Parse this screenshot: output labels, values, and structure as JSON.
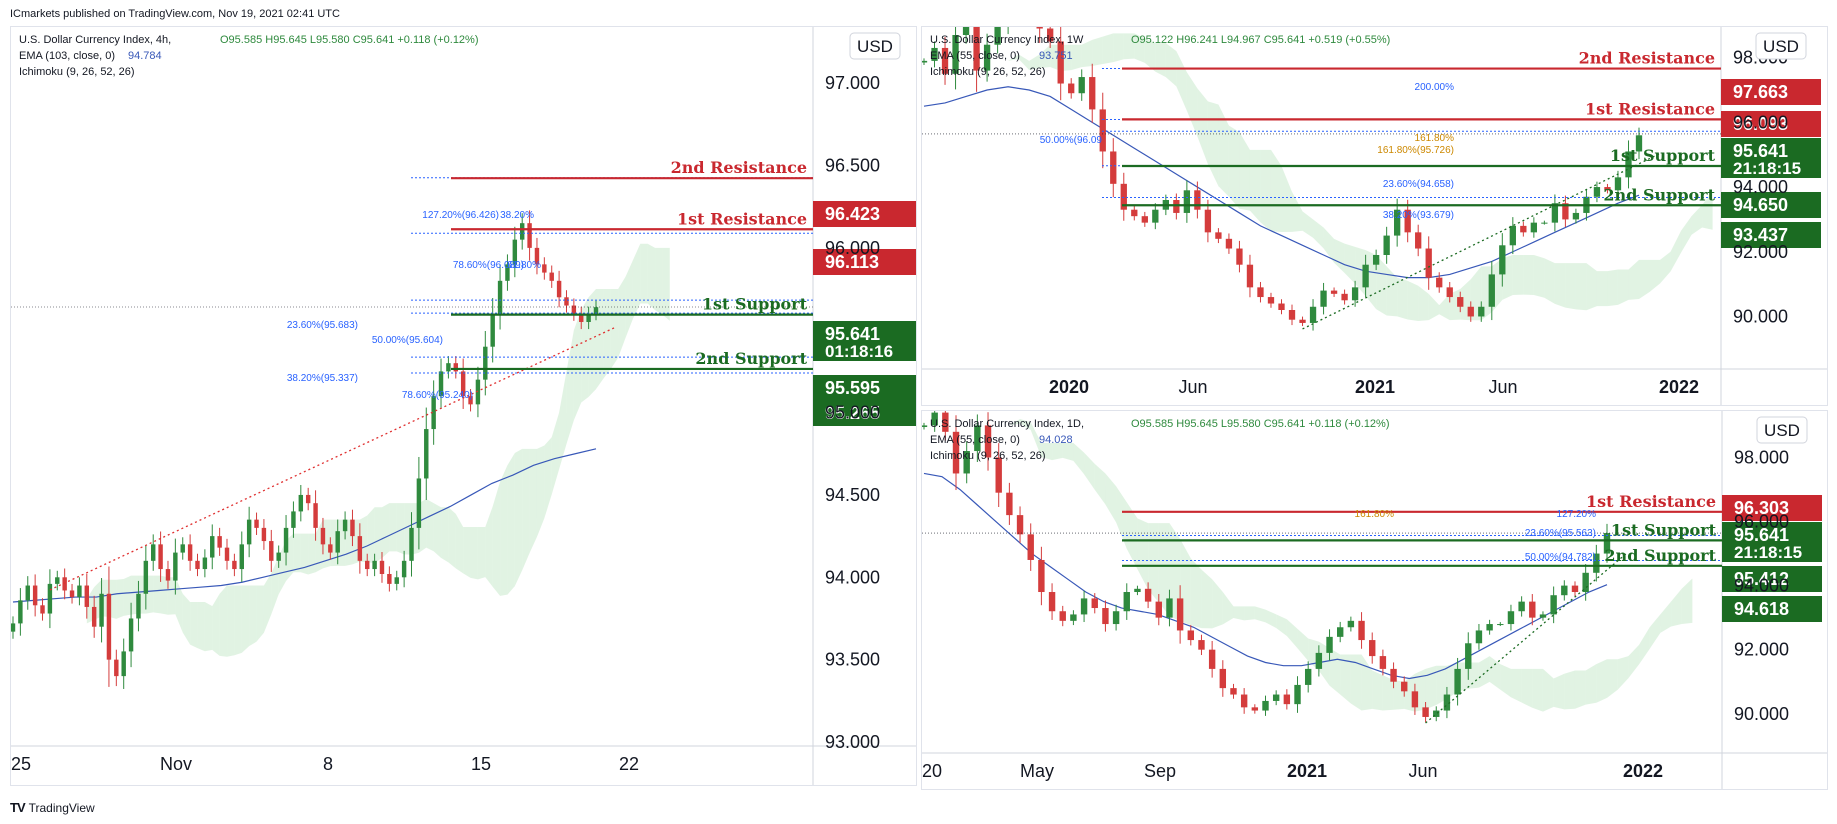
{
  "header": "ICmarkets published on TradingView.com, Nov 19, 2021 02:41 UTC",
  "footer": {
    "brand": "TradingView",
    "logo": "TV"
  },
  "colors": {
    "resistance": "#c9282f",
    "support": "#1b6b22",
    "fib_blue": "#2962ff",
    "fib_orange": "#cc8800",
    "ema": "#3858b8",
    "trend_red": "#e03030",
    "candle_up": "#2f8a3e",
    "candle_down": "#d43c3c",
    "cloud_green": "#a8dcb0",
    "cloud_red": "#f5a5a5"
  },
  "panels": [
    {
      "id": "h4",
      "title_line": "U.S. Dollar Currency Index, 4h,",
      "ohlc": "O95.585  H95.645  L95.580  C95.641  +0.118 (+0.12%)",
      "ema_label": "EMA (103, close, 0)",
      "ema_value": "94.784",
      "ichimoku_label": "Ichimoku (9, 26, 52, 26)",
      "currency": "USD",
      "x_ticks": [
        "25",
        "Nov",
        "8",
        "15",
        "22"
      ],
      "y_ticks": [
        "97.000",
        "96.500",
        "96.000",
        "95.000",
        "94.500",
        "94.000",
        "93.500",
        "93.000"
      ],
      "price_tags": [
        {
          "text": "96.423",
          "type": "resistance"
        },
        {
          "text": "96.113",
          "type": "resistance"
        },
        {
          "text": "95.641",
          "sub": "01:18:16",
          "type": "support"
        },
        {
          "text": "95.595",
          "type": "support"
        },
        {
          "text": "95.265",
          "type": "support"
        }
      ],
      "level_labels": [
        {
          "text": "2nd Resistance",
          "type": "resistance"
        },
        {
          "text": "1st Resistance",
          "type": "resistance"
        },
        {
          "text": "1st Support",
          "type": "support"
        },
        {
          "text": "2nd Support",
          "type": "support"
        }
      ],
      "fib_labels": [
        {
          "text": "127.20%(96.426)",
          "color": "blue"
        },
        {
          "text": "38.20%",
          "color": "blue"
        },
        {
          "text": "78.60%(96.089)",
          "color": "blue"
        },
        {
          "text": "61.80%",
          "color": "blue"
        },
        {
          "text": "23.60%(95.683)",
          "color": "blue"
        },
        {
          "text": "50.00%(95.604)",
          "color": "blue"
        },
        {
          "text": "38.20%(95.337)",
          "color": "blue"
        },
        {
          "text": "78.60%(95.240)",
          "color": "blue"
        }
      ]
    },
    {
      "id": "w1",
      "title_line": "U.S. Dollar Currency Index, 1W",
      "ohlc": "O95.122  H96.241  L94.967  C95.641  +0.519 (+0.55%)",
      "ema_label": "EMA (55, close, 0)",
      "ema_value": "93.751",
      "ichimoku_label": "Ichimoku (9, 26, 52, 26)",
      "currency": "USD",
      "x_ticks": [
        "2020",
        "Jun",
        "2021",
        "Jun",
        "2022"
      ],
      "y_ticks": [
        "98.000",
        "96.000",
        "94.000",
        "92.000",
        "90.000"
      ],
      "price_tags": [
        {
          "text": "97.663",
          "type": "resistance"
        },
        {
          "text": "96.093",
          "type": "resistance"
        },
        {
          "text": "95.641",
          "sub": "21:18:15",
          "type": "support"
        },
        {
          "text": "94.650",
          "type": "support"
        },
        {
          "text": "93.437",
          "type": "support"
        }
      ],
      "level_labels": [
        {
          "text": "2nd Resistance",
          "type": "resistance"
        },
        {
          "text": "1st Resistance",
          "type": "resistance"
        },
        {
          "text": "1st Support",
          "type": "support"
        },
        {
          "text": "2nd Support",
          "type": "support"
        }
      ],
      "fib_labels": [
        {
          "text": "200.00%",
          "color": "blue"
        },
        {
          "text": "161.80%",
          "color": "orange"
        },
        {
          "text": "50.00%(96.09",
          "color": "blue"
        },
        {
          "text": "161.80%(95.726)",
          "color": "orange"
        },
        {
          "text": "23.60%(94.658)",
          "color": "blue"
        },
        {
          "text": "38.20%(93.679)",
          "color": "blue"
        }
      ]
    },
    {
      "id": "d1",
      "title_line": "U.S. Dollar Currency Index, 1D,",
      "ohlc": "O95.585  H95.645  L95.580  C95.641  +0.118 (+0.12%)",
      "ema_label": "EMA (55, close, 0)",
      "ema_value": "94.028",
      "ichimoku_label": "Ichimoku (9, 26, 52, 26)",
      "currency": "USD",
      "x_ticks": [
        "20",
        "May",
        "Sep",
        "2021",
        "Jun",
        "2022"
      ],
      "y_ticks": [
        "98.000",
        "96.000",
        "94.000",
        "92.000",
        "90.000"
      ],
      "price_tags": [
        {
          "text": "96.303",
          "type": "resistance"
        },
        {
          "text": "95.641",
          "sub": "21:18:15",
          "type": "support"
        },
        {
          "text": "95.412",
          "type": "support"
        },
        {
          "text": "94.618",
          "type": "support"
        }
      ],
      "level_labels": [
        {
          "text": "1st Resistance",
          "type": "resistance"
        },
        {
          "text": "1st Support",
          "type": "support"
        },
        {
          "text": "2nd Support",
          "type": "support"
        }
      ],
      "fib_labels": [
        {
          "text": "161.80%",
          "color": "orange"
        },
        {
          "text": "127.20%",
          "color": "blue"
        },
        {
          "text": "23.60%(95.563)",
          "color": "blue"
        },
        {
          "text": "50.00%(94.782)",
          "color": "blue"
        }
      ]
    }
  ],
  "chart_data": [
    {
      "type": "candlestick",
      "title": "U.S. Dollar Currency Index, 4h",
      "x_ticks": [
        "25",
        "Nov",
        "8",
        "15",
        "22"
      ],
      "ylim": [
        93.0,
        97.25
      ],
      "close": [
        93.72,
        93.86,
        93.95,
        93.83,
        93.78,
        93.96,
        94.0,
        93.92,
        93.88,
        93.95,
        93.82,
        93.7,
        93.9,
        93.5,
        93.4,
        93.55,
        93.75,
        93.9,
        94.1,
        94.2,
        94.05,
        93.98,
        94.15,
        94.2,
        94.1,
        94.05,
        94.12,
        94.25,
        94.18,
        94.1,
        94.05,
        94.2,
        94.35,
        94.3,
        94.22,
        94.1,
        94.15,
        94.3,
        94.4,
        94.5,
        94.45,
        94.3,
        94.2,
        94.15,
        94.28,
        94.35,
        94.25,
        94.1,
        94.05,
        94.1,
        94.02,
        93.96,
        94.0,
        94.1,
        94.3,
        94.6,
        94.9,
        95.1,
        95.25,
        95.3,
        95.25,
        95.1,
        95.05,
        95.2,
        95.4,
        95.6,
        95.8,
        95.9,
        96.05,
        96.15,
        96.0,
        95.9,
        95.85,
        95.8,
        95.7,
        95.65,
        95.6,
        95.55,
        95.6,
        95.64
      ],
      "ema": [
        93.85,
        93.86,
        93.87,
        93.88,
        93.88,
        93.9,
        93.91,
        93.92,
        93.93,
        93.94,
        93.95,
        93.97,
        94.0,
        94.03,
        94.06,
        94.1,
        94.14,
        94.19,
        94.25,
        94.31,
        94.37,
        94.43,
        94.5,
        94.57,
        94.62,
        94.68,
        94.72,
        94.75,
        94.78
      ],
      "levels": [
        {
          "name": "2nd Resistance",
          "value": 96.423
        },
        {
          "name": "1st Resistance",
          "value": 96.113
        },
        {
          "name": "1st Support",
          "value": 95.595
        },
        {
          "name": "2nd Support",
          "value": 95.265
        }
      ],
      "last_price": 95.641,
      "fib_levels": [
        {
          "label": "127.20%",
          "value": 96.426
        },
        {
          "label": "78.60%",
          "value": 96.089
        },
        {
          "label": "23.60%",
          "value": 95.683
        },
        {
          "label": "50.00%",
          "value": 95.604
        },
        {
          "label": "38.20%",
          "value": 95.337
        },
        {
          "label": "78.60%",
          "value": 95.24
        }
      ]
    },
    {
      "type": "candlestick",
      "title": "U.S. Dollar Currency Index, 1W",
      "x_ticks": [
        "2020",
        "Jun",
        "2021",
        "Jun",
        "2022"
      ],
      "ylim": [
        88.5,
        98.7
      ],
      "close": [
        97.9,
        98.3,
        97.5,
        98.7,
        99.3,
        97.6,
        98.4,
        99.0,
        99.6,
        99.8,
        100.0,
        98.9,
        98.5,
        97.2,
        96.9,
        97.4,
        96.4,
        95.1,
        94.1,
        93.3,
        93.1,
        92.9,
        93.3,
        93.6,
        93.2,
        93.9,
        93.3,
        92.6,
        92.4,
        92.1,
        91.6,
        90.9,
        90.6,
        90.4,
        90.2,
        89.9,
        89.8,
        90.3,
        90.8,
        90.7,
        90.5,
        90.9,
        91.6,
        91.9,
        92.5,
        93.3,
        92.6,
        92.1,
        91.2,
        90.9,
        90.6,
        90.3,
        90.0,
        90.3,
        91.3,
        92.2,
        92.8,
        92.6,
        92.9,
        92.9,
        93.5,
        93.0,
        93.2,
        93.7,
        94.0,
        93.9,
        94.3,
        95.1,
        95.6
      ],
      "ema": [
        96.5,
        96.6,
        96.8,
        97.0,
        97.1,
        97.0,
        96.8,
        96.4,
        96.0,
        95.6,
        95.2,
        94.8,
        94.4,
        94.0,
        93.6,
        93.2,
        92.8,
        92.5,
        92.2,
        91.9,
        91.6,
        91.4,
        91.3,
        91.2,
        91.2,
        91.3,
        91.5,
        91.7,
        92.0,
        92.3,
        92.6,
        92.9,
        93.2,
        93.5,
        93.75
      ],
      "levels": [
        {
          "name": "2nd Resistance",
          "value": 97.663
        },
        {
          "name": "1st Resistance",
          "value": 96.093
        },
        {
          "name": "1st Support",
          "value": 94.65
        },
        {
          "name": "2nd Support",
          "value": 93.437
        }
      ],
      "last_price": 95.641,
      "fib_levels": [
        {
          "label": "200.00%",
          "value": 97.663
        },
        {
          "label": "50.00%",
          "value": 96.09
        },
        {
          "label": "161.80%",
          "value": 95.726
        },
        {
          "label": "23.60%",
          "value": 94.658
        },
        {
          "label": "38.20%",
          "value": 93.679
        }
      ]
    },
    {
      "type": "candlestick",
      "title": "U.S. Dollar Currency Index, 1D",
      "x_ticks": [
        "20",
        "May",
        "Sep",
        "2021",
        "Jun",
        "2022"
      ],
      "ylim": [
        88.9,
        99.2
      ],
      "close": [
        99.0,
        99.4,
        98.8,
        97.5,
        98.2,
        99.0,
        98.0,
        96.9,
        96.2,
        95.6,
        94.8,
        93.8,
        93.2,
        92.9,
        93.1,
        93.6,
        93.3,
        92.8,
        93.2,
        93.8,
        93.9,
        93.5,
        93.0,
        93.6,
        92.6,
        92.3,
        92.0,
        91.4,
        90.8,
        90.6,
        90.2,
        90.1,
        90.4,
        90.6,
        90.3,
        90.9,
        91.4,
        91.9,
        92.4,
        92.7,
        92.9,
        92.3,
        91.8,
        91.4,
        91.0,
        90.7,
        90.2,
        89.9,
        90.1,
        90.6,
        91.4,
        92.2,
        92.6,
        92.8,
        92.8,
        93.2,
        93.5,
        93.0,
        93.1,
        93.7,
        94.0,
        93.8,
        94.4,
        95.0,
        95.64
      ],
      "ema": [
        97.5,
        97.4,
        97.0,
        96.5,
        96.0,
        95.5,
        95.0,
        94.6,
        94.2,
        93.8,
        93.5,
        93.3,
        93.2,
        93.1,
        92.9,
        92.7,
        92.4,
        92.1,
        91.8,
        91.6,
        91.5,
        91.5,
        91.6,
        91.7,
        91.6,
        91.4,
        91.2,
        91.1,
        91.2,
        91.4,
        91.7,
        92.0,
        92.3,
        92.6,
        92.9,
        93.2,
        93.5,
        93.8,
        94.03
      ],
      "levels": [
        {
          "name": "1st Resistance",
          "value": 96.303
        },
        {
          "name": "1st Support",
          "value": 95.412
        },
        {
          "name": "2nd Support",
          "value": 94.618
        }
      ],
      "last_price": 95.641,
      "fib_levels": [
        {
          "label": "127.20%",
          "value": 96.303
        },
        {
          "label": "23.60%",
          "value": 95.563
        },
        {
          "label": "50.00%",
          "value": 94.782
        }
      ]
    }
  ]
}
